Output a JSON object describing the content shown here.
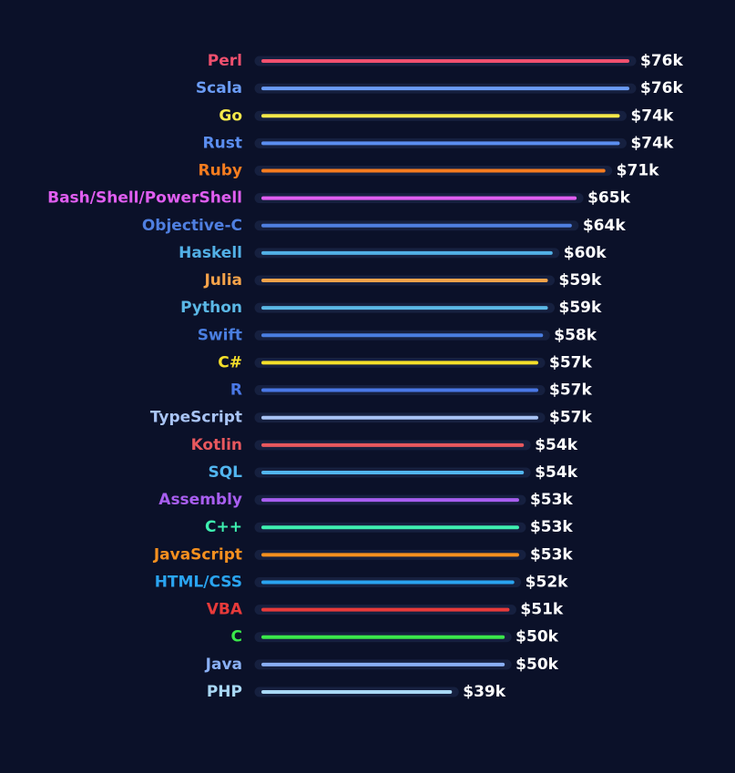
{
  "chart_data": {
    "type": "bar",
    "orientation": "horizontal",
    "title": "",
    "xlabel": "",
    "ylabel": "",
    "xlim": [
      0,
      76
    ],
    "value_prefix": "$",
    "value_suffix": "k",
    "grid": false,
    "categories": [
      "Perl",
      "Scala",
      "Go",
      "Rust",
      "Ruby",
      "Bash/Shell/PowerShell",
      "Objective-C",
      "Haskell",
      "Julia",
      "Python",
      "Swift",
      "C#",
      "R",
      "TypeScript",
      "Kotlin",
      "SQL",
      "Assembly",
      "C++",
      "JavaScript",
      "HTML/CSS",
      "VBA",
      "C",
      "Java",
      "PHP"
    ],
    "values": [
      76,
      76,
      74,
      74,
      71,
      65,
      64,
      60,
      59,
      59,
      58,
      57,
      57,
      57,
      54,
      54,
      53,
      53,
      53,
      52,
      51,
      50,
      50,
      39
    ],
    "value_labels": [
      "$76k",
      "$76k",
      "$74k",
      "$74k",
      "$71k",
      "$65k",
      "$64k",
      "$60k",
      "$59k",
      "$59k",
      "$58k",
      "$57k",
      "$57k",
      "$57k",
      "$54k",
      "$54k",
      "$53k",
      "$53k",
      "$53k",
      "$52k",
      "$51k",
      "$50k",
      "$50k",
      "$39k"
    ],
    "colors": [
      "#f0506e",
      "#6b9cf5",
      "#f5e94a",
      "#5b8ef0",
      "#f57c1f",
      "#e05ef0",
      "#4f7fe0",
      "#52b0e6",
      "#f5a34a",
      "#5bb8e6",
      "#4a7ee0",
      "#f5e02a",
      "#4a78e6",
      "#a9c4f5",
      "#e8585e",
      "#52b6f0",
      "#a85ef0",
      "#3ef0b0",
      "#f5901f",
      "#2aa4f0",
      "#e83a3a",
      "#3ae84a",
      "#8ab0f5",
      "#a9d8f5"
    ]
  }
}
